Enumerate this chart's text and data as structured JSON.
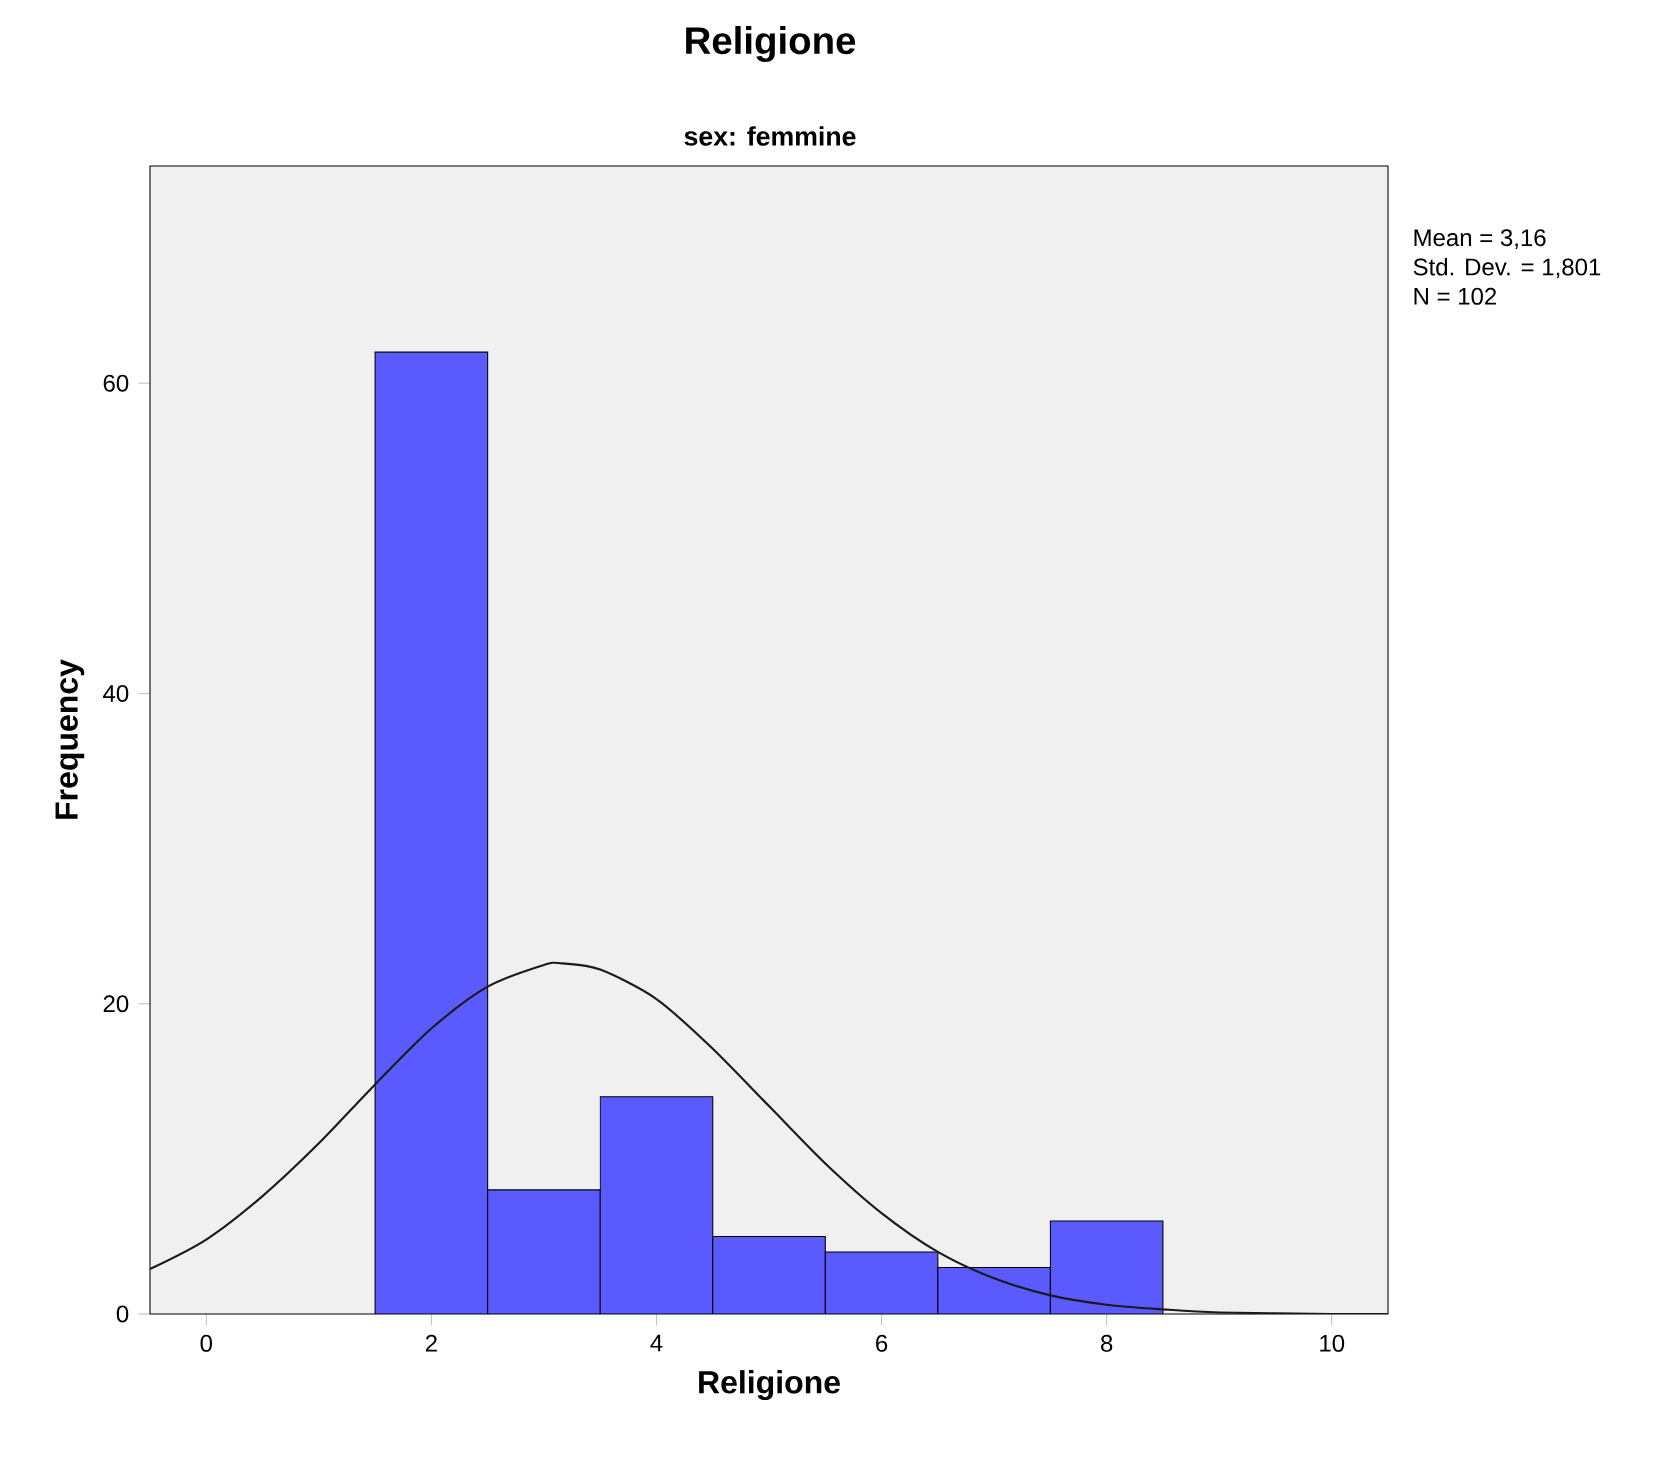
{
  "chart_data": {
    "type": "histogram",
    "title": "Religione",
    "subtitle": "sex: femmine",
    "xlabel": "Religione",
    "ylabel": "Frequency",
    "bins": [
      1.5,
      2.5,
      3.5,
      4.5,
      5.5,
      6.5,
      7.5,
      8.5
    ],
    "values": [
      62,
      8,
      14,
      5,
      4,
      3,
      6
    ],
    "color": "#5a5aff",
    "series": [
      {
        "type": "line",
        "color": "#1a1a1a",
        "x": [
          -0.5,
          0,
          0.5,
          1,
          1.5,
          2,
          2.5,
          3,
          3.16,
          3.5,
          4,
          4.5,
          5,
          5.5,
          6,
          6.5,
          7,
          7.5,
          8,
          8.5,
          9,
          10,
          10.5
        ],
        "values": [
          2.9,
          4.8,
          7.6,
          11.0,
          14.8,
          18.4,
          21.1,
          22.5,
          22.6,
          22.2,
          20.3,
          17.1,
          13.4,
          9.7,
          6.5,
          4.0,
          2.3,
          1.2,
          0.6,
          0.3,
          0.1,
          0,
          0
        ]
      }
    ],
    "xlim": [
      -0.5,
      10.5
    ],
    "xticks": [
      0,
      2,
      4,
      6,
      8,
      10
    ],
    "ylim": [
      0,
      74
    ],
    "yticks": [
      0,
      20,
      40,
      60
    ],
    "annotations": [
      "Mean = 3,16",
      "Std. Dev. = 1,801",
      "N = 102"
    ]
  }
}
